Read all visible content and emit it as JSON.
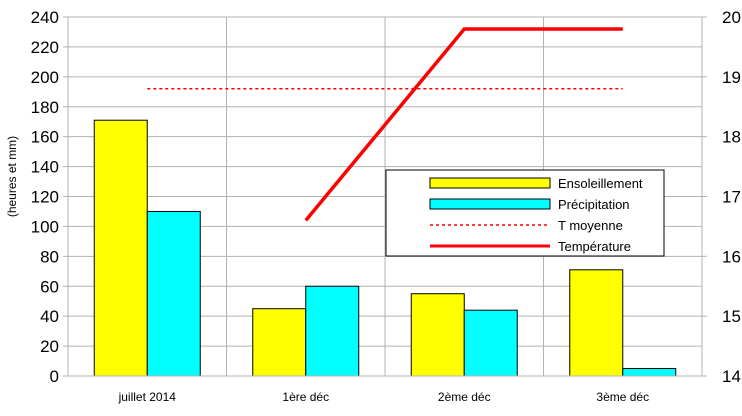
{
  "chart_data": {
    "type": "bar",
    "title": "",
    "xlabel": "",
    "ylabel": "(heures et mm)",
    "ylabel_right": "",
    "categories": [
      "juillet 2014",
      "1ère déc",
      "2ème déc",
      "3ème déc"
    ],
    "ylim": [
      0,
      240
    ],
    "yticks": [
      0,
      20,
      40,
      60,
      80,
      100,
      120,
      140,
      160,
      180,
      200,
      220,
      240
    ],
    "y2lim": [
      14,
      20
    ],
    "y2ticks": [
      14,
      15,
      16,
      17,
      18,
      19,
      20
    ],
    "grid": true,
    "legend_position": "center-right",
    "series": [
      {
        "name": "Ensoleillement",
        "kind": "bar",
        "axis": "left",
        "color": "#ffff00",
        "values": [
          171,
          45,
          55,
          71
        ]
      },
      {
        "name": "Précipitation",
        "kind": "bar",
        "axis": "left",
        "color": "#00ffff",
        "values": [
          110,
          60,
          44,
          5
        ]
      },
      {
        "name": "T moyenne",
        "kind": "line",
        "axis": "right",
        "style": "dashed",
        "color": "#ff0000",
        "values": [
          18.8,
          18.8,
          18.8,
          18.8
        ]
      },
      {
        "name": "Température",
        "kind": "line",
        "axis": "right",
        "style": "solid",
        "color": "#ff0000",
        "values": [
          null,
          16.6,
          19.8,
          19.8
        ]
      }
    ]
  }
}
